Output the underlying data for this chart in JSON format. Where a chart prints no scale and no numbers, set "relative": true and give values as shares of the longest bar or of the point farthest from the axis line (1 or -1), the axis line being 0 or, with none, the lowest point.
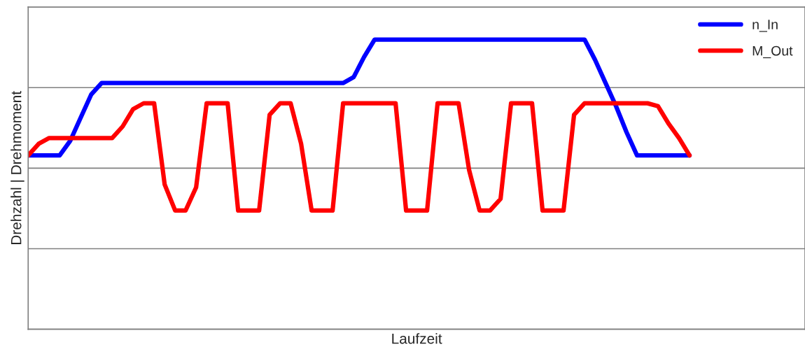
{
  "chart_data": {
    "type": "line",
    "xlabel": "Laufzeit",
    "ylabel": "Drehzahl | Drehmoment",
    "relative": true,
    "grid": "y",
    "legend": "top right",
    "categories": [
      null,
      null,
      null,
      null,
      null,
      null,
      null,
      null,
      null,
      null,
      null,
      null,
      null,
      null,
      null,
      null,
      null,
      null,
      null,
      null,
      null,
      null,
      null,
      null,
      null,
      null,
      null,
      null,
      null,
      null,
      null,
      null,
      null,
      null,
      null,
      null,
      null,
      null,
      null,
      null,
      null,
      null,
      null,
      null,
      null,
      null,
      null,
      null,
      null,
      null,
      null,
      null,
      null,
      null,
      null,
      null,
      null,
      null,
      null,
      null,
      null,
      null,
      null,
      null,
      null,
      null,
      null,
      null,
      null,
      null,
      null,
      null,
      null,
      null,
      null
    ],
    "series": [
      {
        "name": "n_In",
        "color": "#0000ff",
        "values": [
          0.6,
          0.6,
          0.6,
          0.6,
          0.65,
          0.73,
          0.81,
          0.85,
          0.85,
          0.85,
          0.85,
          0.85,
          0.85,
          0.85,
          0.85,
          0.85,
          0.85,
          0.85,
          0.85,
          0.85,
          0.85,
          0.85,
          0.85,
          0.85,
          0.85,
          0.85,
          0.85,
          0.85,
          0.85,
          0.85,
          0.85,
          0.87,
          0.94,
          1,
          1,
          1,
          1,
          1,
          1,
          1,
          1,
          1,
          1,
          1,
          1,
          1,
          1,
          1,
          1,
          1,
          1,
          1,
          1,
          1,
          0.93,
          0.85,
          0.77,
          0.68,
          0.6,
          0.6,
          0.6,
          0.6,
          0.6,
          0.6,
          null,
          null,
          null,
          null,
          null,
          null,
          null,
          null,
          null,
          null,
          null
        ]
      },
      {
        "name": "M_Out",
        "color": "#ff0000",
        "values": [
          0.6,
          0.64,
          0.66,
          0.66,
          0.66,
          0.66,
          0.66,
          0.66,
          0.66,
          0.7,
          0.76,
          0.78,
          0.78,
          0.5,
          0.41,
          0.41,
          0.49,
          0.78,
          0.78,
          0.78,
          0.41,
          0.41,
          0.41,
          0.74,
          0.78,
          0.78,
          0.64,
          0.41,
          0.41,
          0.41,
          0.78,
          0.78,
          0.78,
          0.78,
          0.78,
          0.78,
          0.41,
          0.41,
          0.41,
          0.78,
          0.78,
          0.78,
          0.55,
          0.41,
          0.41,
          0.45,
          0.78,
          0.78,
          0.78,
          0.41,
          0.41,
          0.41,
          0.74,
          0.78,
          0.78,
          0.78,
          0.78,
          0.78,
          0.78,
          0.78,
          0.77,
          0.71,
          0.66,
          0.6,
          null,
          null,
          null,
          null,
          null,
          null,
          null,
          null,
          null,
          null,
          null
        ]
      }
    ]
  }
}
